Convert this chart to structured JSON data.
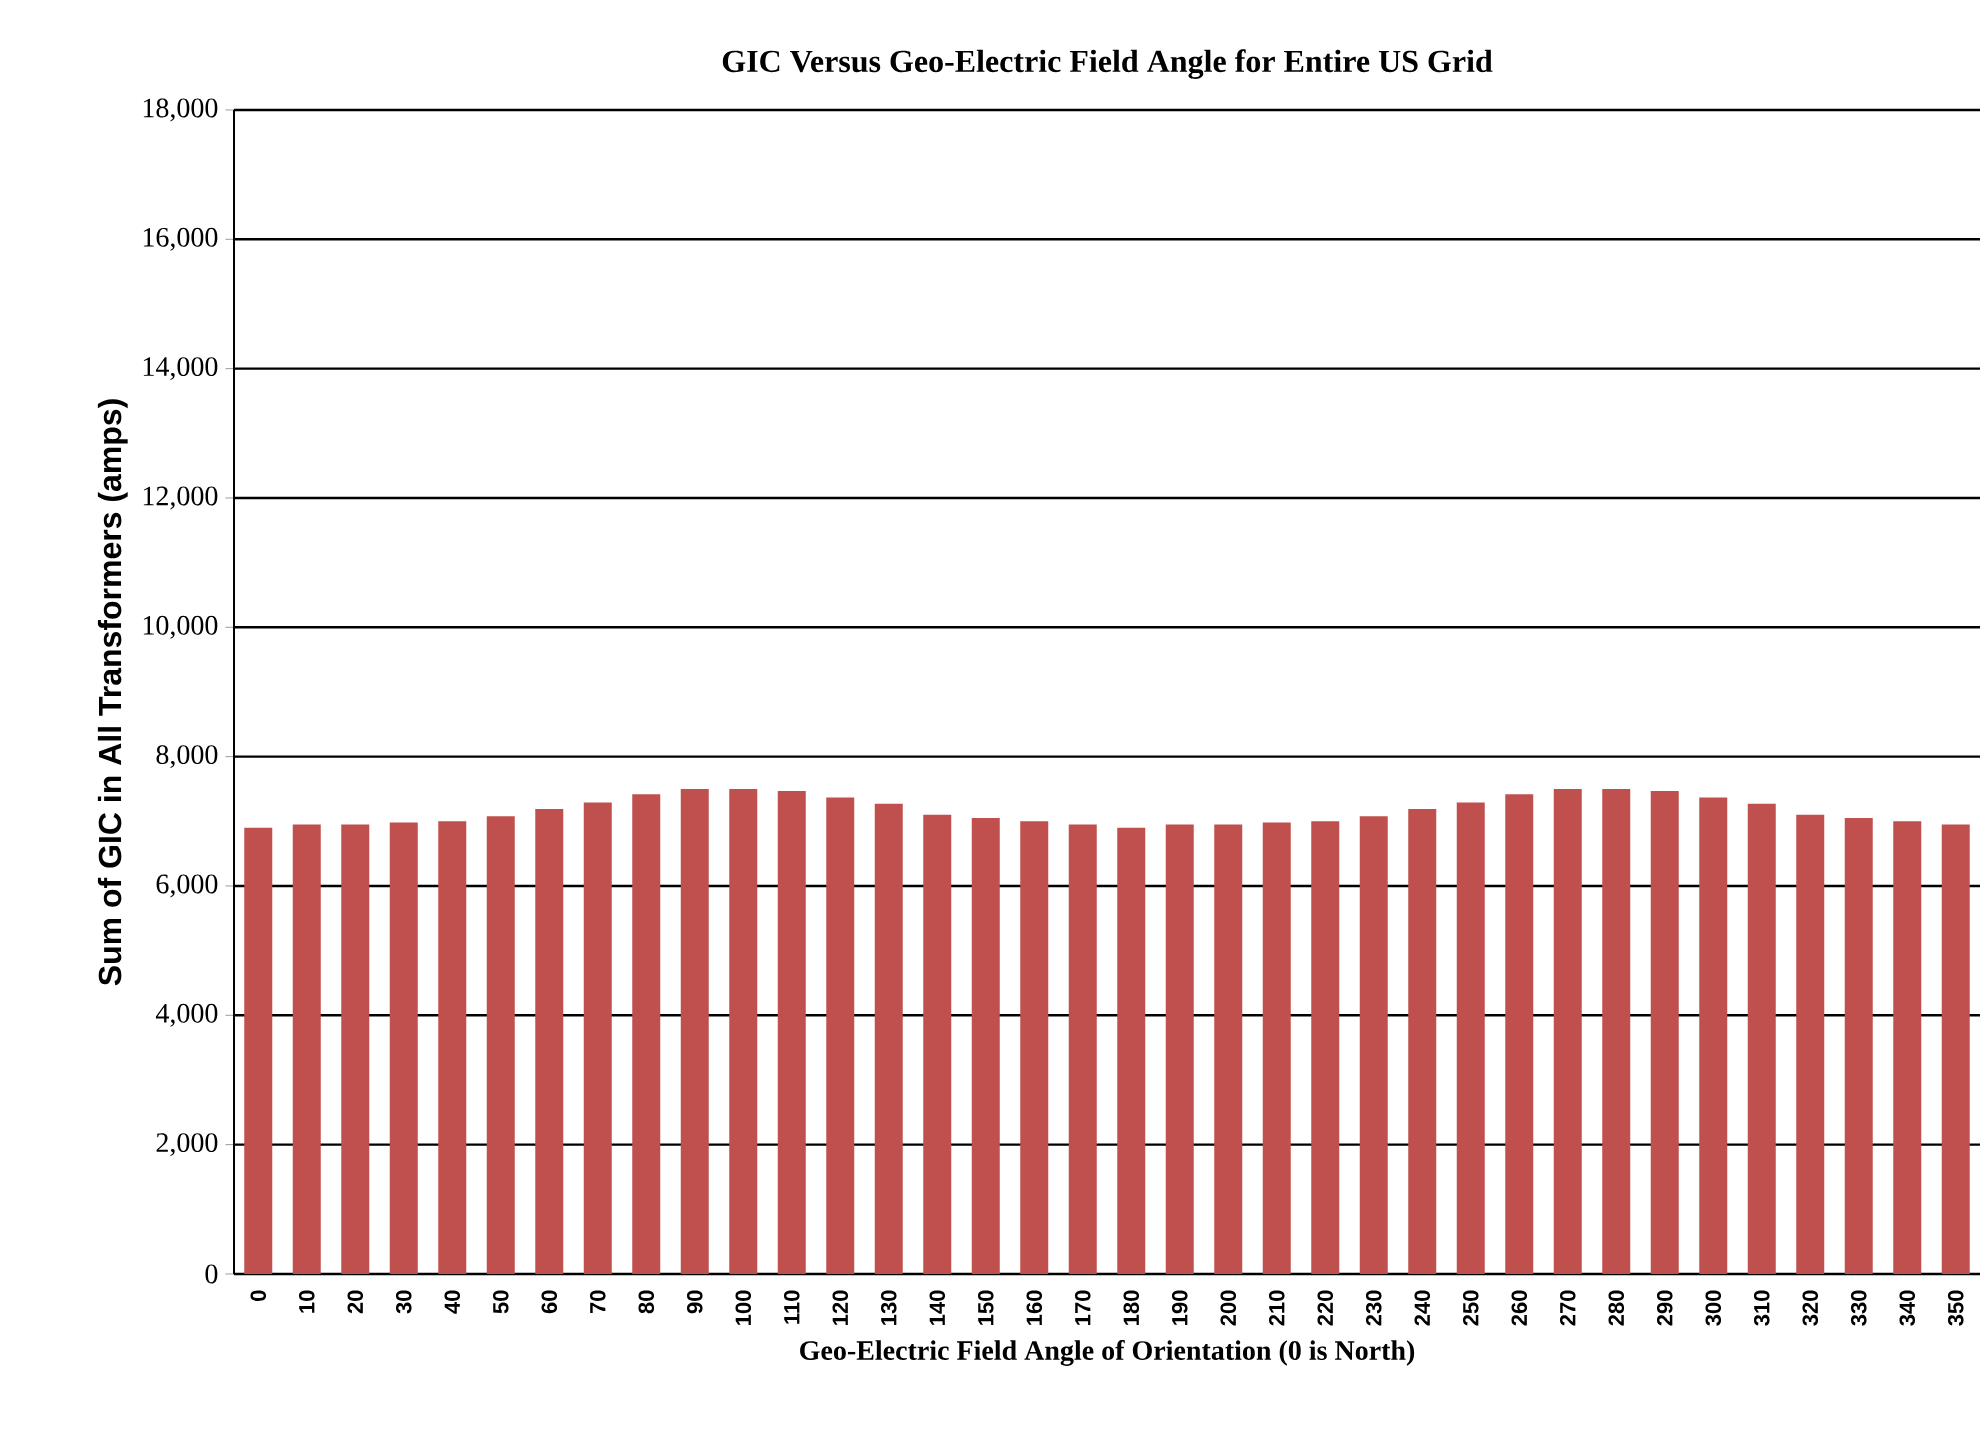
{
  "chart_data": {
    "type": "bar",
    "title": "GIC Versus Geo-Electric Field Angle for Entire US Grid",
    "xlabel": "Geo-Electric Field Angle of Orientation (0 is North)",
    "ylabel": "Sum of GIC in All Transformers (amps)",
    "categories": [
      "0",
      "10",
      "20",
      "30",
      "40",
      "50",
      "60",
      "70",
      "80",
      "90",
      "100",
      "110",
      "120",
      "130",
      "140",
      "150",
      "160",
      "170",
      "180",
      "190",
      "200",
      "210",
      "220",
      "230",
      "240",
      "250",
      "260",
      "270",
      "280",
      "290",
      "300",
      "310",
      "320",
      "330",
      "340",
      "350"
    ],
    "values": [
      6900,
      6950,
      6950,
      6980,
      7000,
      7080,
      7190,
      7290,
      7420,
      7500,
      7500,
      7470,
      7370,
      7270,
      7100,
      7050,
      7000,
      6950,
      6900,
      6950,
      6950,
      6980,
      7000,
      7080,
      7190,
      7290,
      7420,
      7500,
      7500,
      7470,
      7370,
      7270,
      7100,
      7050,
      7000,
      6950
    ],
    "color": "#c0504d",
    "ylim": [
      0,
      18000
    ],
    "yticks": [
      0,
      {
        "value": 2000,
        "label": "2,000"
      },
      {
        "value": 4000,
        "label": "4,000"
      },
      {
        "value": 6000,
        "label": "6,000"
      },
      {
        "value": 8000,
        "label": "8,000"
      },
      {
        "value": 10000,
        "label": "10,000"
      },
      {
        "value": 12000,
        "label": "12,000"
      },
      {
        "value": 14000,
        "label": "14,000"
      },
      {
        "value": 16000,
        "label": "16,000"
      },
      {
        "value": 18000,
        "label": "18,000"
      }
    ],
    "grid": "y"
  }
}
